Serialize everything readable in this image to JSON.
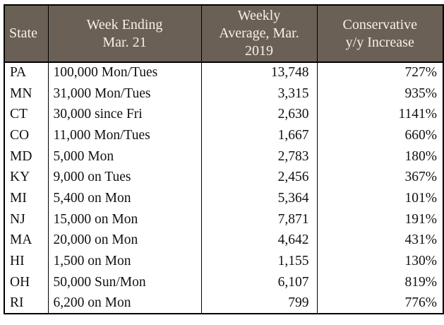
{
  "colors": {
    "header_bg": "#6b6055",
    "header_text": "#f5f1ea",
    "body_text": "#111111",
    "border": "#000000",
    "page_bg": "#ffffff"
  },
  "table": {
    "headers": [
      {
        "label": "State",
        "align": "left",
        "lines": [
          "State"
        ]
      },
      {
        "label": "Week Ending Mar. 21",
        "align": "center",
        "lines": [
          "Week Ending",
          "Mar. 21"
        ]
      },
      {
        "label": "Weekly Average, Mar. 2019",
        "align": "center",
        "lines": [
          "Weekly",
          "Average, Mar.",
          "2019"
        ]
      },
      {
        "label": "Conservative y/y Increase",
        "align": "center",
        "lines": [
          "Conservative",
          "y/y Increase"
        ]
      }
    ]
  },
  "chart_data": {
    "type": "table",
    "title": "",
    "columns": [
      "State",
      "Week Ending Mar. 21",
      "Weekly Average, Mar. 2019",
      "Conservative y/y Increase"
    ],
    "rows": [
      [
        "PA",
        "100,000 Mon/Tues",
        "13,748",
        "727%"
      ],
      [
        "MN",
        "31,000 Mon/Tues",
        "3,315",
        "935%"
      ],
      [
        "CT",
        "30,000 since Fri",
        "2,630",
        "1141%"
      ],
      [
        "CO",
        "11,000 Mon/Tues",
        "1,667",
        "660%"
      ],
      [
        "MD",
        "5,000 Mon",
        "2,783",
        "180%"
      ],
      [
        "KY",
        "9,000 on Tues",
        "2,456",
        "367%"
      ],
      [
        "MI",
        "5,400 on Mon",
        "5,364",
        "101%"
      ],
      [
        "NJ",
        "15,000 on Mon",
        "7,871",
        "191%"
      ],
      [
        "MA",
        "20,000 on Mon",
        "4,642",
        "431%"
      ],
      [
        "HI",
        "1,500 on Mon",
        "1,155",
        "130%"
      ],
      [
        "OH",
        "50,000 Sun/Mon",
        "6,107",
        "819%"
      ],
      [
        "RI",
        "6,200 on Mon",
        "799",
        "776%"
      ]
    ]
  }
}
